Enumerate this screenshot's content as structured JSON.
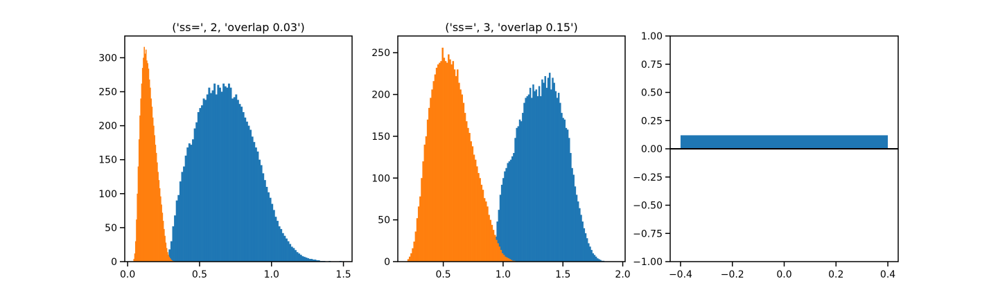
{
  "chart_data": [
    {
      "type": "bar",
      "subtype": "histogram",
      "title": "('ss=', 2, 'overlap 0.03')",
      "xlabel": "",
      "ylabel": "",
      "xlim": [
        -0.02,
        1.56
      ],
      "ylim": [
        0,
        332
      ],
      "xticks": [
        0.0,
        0.5,
        1.0,
        1.5
      ],
      "xtick_labels": [
        "0.0",
        "0.5",
        "1.0",
        "1.5"
      ],
      "yticks": [
        0,
        50,
        100,
        150,
        200,
        250,
        300
      ],
      "ytick_labels": [
        "0",
        "50",
        "100",
        "150",
        "200",
        "250",
        "300"
      ],
      "grid": false,
      "series": [
        {
          "color": "#1f77b4",
          "bin_start": 0.26,
          "bin_width": 0.0125,
          "values": [
            5,
            10,
            18,
            30,
            52,
            68,
            90,
            98,
            118,
            132,
            140,
            156,
            168,
            174,
            172,
            180,
            196,
            205,
            220,
            226,
            230,
            240,
            238,
            246,
            256,
            248,
            252,
            262,
            246,
            260,
            256,
            250,
            262,
            258,
            256,
            262,
            256,
            240,
            242,
            246,
            238,
            232,
            228,
            220,
            212,
            206,
            200,
            194,
            184,
            176,
            168,
            162,
            150,
            142,
            130,
            120,
            110,
            102,
            94,
            85,
            76,
            66,
            60,
            52,
            48,
            42,
            38,
            34,
            30,
            26,
            22,
            20,
            17,
            14,
            12,
            10,
            8,
            7,
            6,
            5,
            4,
            4,
            3,
            3,
            2,
            2,
            1,
            1,
            1,
            0,
            0,
            1,
            0,
            0,
            0,
            0,
            0,
            1
          ]
        },
        {
          "color": "#ff7f0e",
          "bin_start": 0.04,
          "bin_width": 0.006,
          "values": [
            4,
            12,
            30,
            62,
            100,
            140,
            180,
            215,
            240,
            262,
            285,
            300,
            316,
            306,
            312,
            296,
            292,
            284,
            268,
            256,
            240,
            228,
            212,
            200,
            186,
            172,
            160,
            146,
            132,
            120,
            108,
            96,
            84,
            72,
            60,
            48,
            38,
            28,
            20,
            14,
            10,
            7,
            5,
            3,
            2,
            1,
            1
          ]
        }
      ]
    },
    {
      "type": "bar",
      "subtype": "histogram",
      "title": "('ss=', 3, 'overlap 0.15')",
      "xlabel": "",
      "ylabel": "",
      "xlim": [
        0.12,
        2.02
      ],
      "ylim": [
        0,
        270
      ],
      "xticks": [
        0.5,
        1.0,
        1.5,
        2.0
      ],
      "xtick_labels": [
        "0.5",
        "1.0",
        "1.5",
        "2.0"
      ],
      "yticks": [
        0,
        50,
        100,
        150,
        200,
        250
      ],
      "ytick_labels": [
        "0",
        "50",
        "100",
        "150",
        "200",
        "250"
      ],
      "grid": false,
      "series": [
        {
          "color": "#1f77b4",
          "bin_start": 0.92,
          "bin_width": 0.0125,
          "values": [
            18,
            30,
            48,
            62,
            80,
            92,
            100,
            108,
            112,
            118,
            120,
            122,
            126,
            130,
            148,
            160,
            162,
            170,
            168,
            178,
            190,
            196,
            198,
            200,
            208,
            196,
            212,
            204,
            206,
            198,
            210,
            198,
            218,
            214,
            222,
            208,
            220,
            226,
            206,
            220,
            214,
            204,
            196,
            202,
            190,
            178,
            172,
            170,
            160,
            158,
            148,
            130,
            112,
            104,
            90,
            80,
            72,
            64,
            56,
            48,
            40,
            34,
            28,
            22,
            18,
            14,
            10,
            8,
            6,
            4,
            3,
            2,
            1,
            1
          ]
        },
        {
          "color": "#ff7f0e",
          "bin_start": 0.2,
          "bin_width": 0.0125,
          "values": [
            3,
            6,
            10,
            16,
            24,
            36,
            52,
            66,
            78,
            100,
            120,
            140,
            150,
            170,
            184,
            196,
            206,
            216,
            224,
            232,
            236,
            238,
            240,
            256,
            244,
            240,
            238,
            248,
            242,
            236,
            240,
            230,
            222,
            230,
            214,
            206,
            200,
            190,
            178,
            168,
            160,
            154,
            144,
            138,
            128,
            122,
            114,
            106,
            100,
            92,
            86,
            76,
            72,
            66,
            56,
            50,
            44,
            38,
            32,
            26,
            22,
            18,
            14,
            10,
            8,
            6,
            5,
            4,
            3,
            2,
            1,
            1
          ]
        }
      ]
    },
    {
      "type": "bar",
      "title": "",
      "xlabel": "",
      "ylabel": "",
      "xlim": [
        -0.44,
        0.44
      ],
      "ylim": [
        -1.0,
        1.0
      ],
      "xticks": [
        -0.4,
        -0.2,
        0.0,
        0.2,
        0.4
      ],
      "xtick_labels": [
        "−0.4",
        "−0.2",
        "0.0",
        "0.2",
        "0.4"
      ],
      "yticks": [
        -1.0,
        -0.75,
        -0.5,
        -0.25,
        0.0,
        0.25,
        0.5,
        0.75,
        1.0
      ],
      "ytick_labels": [
        "−1.00",
        "−0.75",
        "−0.50",
        "−0.25",
        "0.00",
        "0.25",
        "0.50",
        "0.75",
        "1.00"
      ],
      "grid": false,
      "bars": [
        {
          "x": 0.0,
          "width": 0.8,
          "value": 0.12,
          "color": "#1f77b4"
        }
      ],
      "hline": {
        "y": 0.0,
        "color": "#000000"
      }
    }
  ]
}
